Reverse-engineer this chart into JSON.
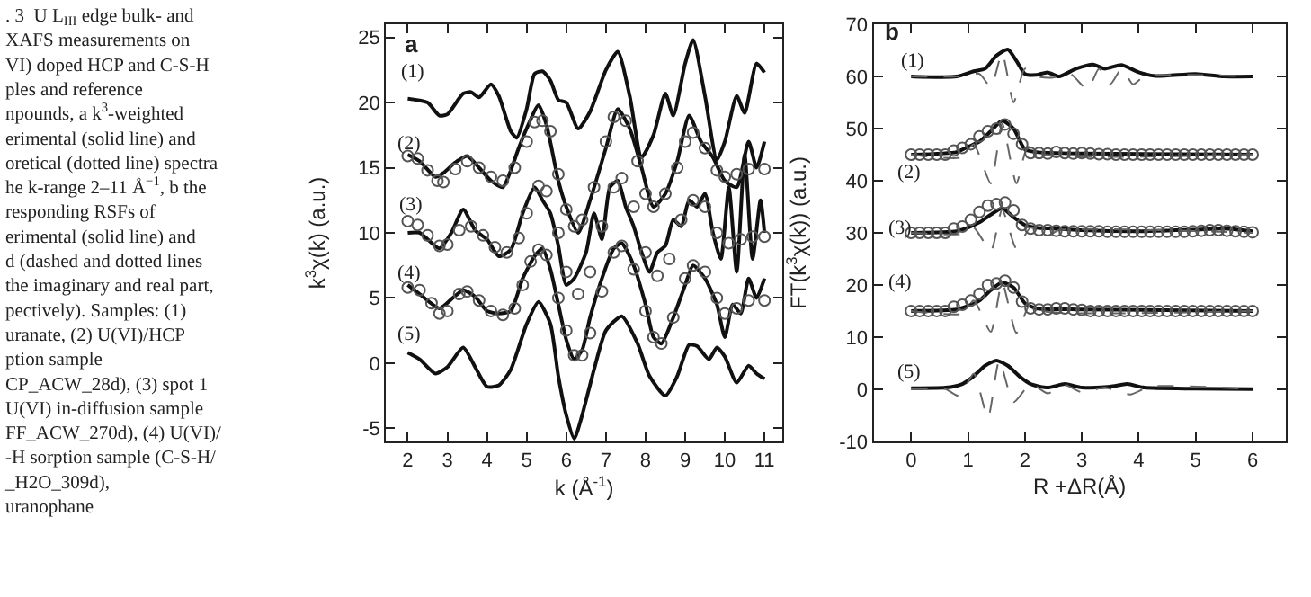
{
  "chart_data": [
    {
      "type": "line",
      "xlabel": "k (Å$^{-1}$)",
      "ylabel": "k$^{3}$χ(k) (a.u.)",
      "xlim": [
        1.45,
        11.45
      ],
      "ylim": [
        -6,
        26
      ],
      "xticks": [
        2,
        3,
        4,
        5,
        6,
        7,
        8,
        9,
        10,
        11
      ],
      "yticks": [
        -5,
        0,
        5,
        10,
        15,
        20,
        25
      ],
      "annotations": [
        ". 3  U L$_{III}$ edge bulk- and\nXAFS measurements on\nVI) doped HCP and C-S-H\nples and reference\nnpounds, a k$^{3}$-weighted\nerimental (solid line) and\noretical (dotted line) spectra\nhe k-range 2–11 Å$^{−1}$, b the\nresponding RSFs of\nerimental (solid line) and\nd (dashed and dotted lines\nthe imaginary and real part,\npectively). Samples: (1)\nuranate, (2) U(VI)/HCP\nption sample\nCP_ACW_28d), (3) spot 1\nU(VI) in-diffusion sample\nFF_ACW_270d), (4) U(VI)/\n-H sorption sample (C-S-H/\n_H2O_309d),\nuranophane",
        "a",
        "(1)",
        "(2)",
        "(3)",
        "(4)",
        "(5)"
      ],
      "series": [
        {
          "type": "line",
          "marker": "none",
          "line_style": "solid",
          "color": "#111111",
          "x": [
            2,
            2.5,
            2.8,
            3.0,
            3.4,
            3.6,
            3.8,
            4.1,
            4.3,
            4.6,
            4.75,
            5.0,
            5.2,
            5.4,
            5.6,
            5.8,
            6.0,
            6.3,
            6.6,
            7.0,
            7.3,
            7.6,
            7.9,
            8.2,
            8.5,
            8.7,
            9.0,
            9.2,
            9.5,
            9.8,
            10.0,
            10.3,
            10.5,
            10.8,
            11.0
          ],
          "values": [
            20.3,
            20.0,
            19.0,
            19.1,
            20.7,
            20.8,
            20.4,
            21.4,
            20.5,
            17.8,
            17.3,
            19.5,
            22.2,
            22.4,
            21.7,
            20.2,
            20.0,
            18.0,
            19.3,
            22.5,
            23.9,
            20.5,
            15.8,
            17.5,
            20.7,
            19.0,
            23.0,
            24.8,
            20.5,
            15.6,
            17.0,
            20.5,
            19.2,
            23.0,
            22.3
          ]
        },
        {
          "type": "line",
          "marker": "none",
          "line_style": "solid",
          "color": "#111111",
          "x": [
            2,
            2.3,
            2.7,
            2.9,
            3.2,
            3.5,
            3.8,
            4.1,
            4.4,
            4.6,
            4.8,
            5.0,
            5.3,
            5.5,
            5.8,
            6.0,
            6.3,
            6.6,
            7.0,
            7.3,
            7.6,
            7.9,
            8.2,
            8.5,
            8.8,
            9.1,
            9.4,
            9.7,
            10.0,
            10.3,
            10.6,
            10.8,
            11.0
          ],
          "values": [
            16.0,
            15.5,
            14.3,
            14.6,
            15.4,
            15.9,
            15.0,
            14.0,
            13.5,
            14.8,
            16.5,
            18.0,
            19.8,
            18.3,
            14.0,
            12.0,
            10.0,
            12.5,
            16.5,
            19.5,
            18.0,
            15.0,
            12.0,
            13.0,
            15.5,
            19.0,
            17.0,
            15.8,
            14.0,
            13.5,
            17.0,
            15.0,
            17.0
          ]
        },
        {
          "type": "scatter",
          "marker": "circle",
          "color": "#555555",
          "x": [
            2,
            2.25,
            2.5,
            2.75,
            2.9,
            3.2,
            3.5,
            3.8,
            4.1,
            4.4,
            4.7,
            5.0,
            5.2,
            5.4,
            5.6,
            5.8,
            6.0,
            6.2,
            6.4,
            6.7,
            7.0,
            7.2,
            7.5,
            7.8,
            8.0,
            8.2,
            8.5,
            8.8,
            9.0,
            9.2,
            9.5,
            9.8,
            10.0,
            10.3,
            10.6,
            11.0
          ],
          "values": [
            15.9,
            15.7,
            14.8,
            14.0,
            13.9,
            14.9,
            15.5,
            15.0,
            14.3,
            14.0,
            15.0,
            17.0,
            18.5,
            18.6,
            17.8,
            14.5,
            11.8,
            10.5,
            11.0,
            13.5,
            17.0,
            18.9,
            18.6,
            15.5,
            13.0,
            12.0,
            13.0,
            15.0,
            17.0,
            17.7,
            16.5,
            14.8,
            14.3,
            14.5,
            14.9,
            14.9
          ]
        },
        {
          "type": "line",
          "marker": "none",
          "line_style": "solid",
          "color": "#111111",
          "x": [
            2,
            2.3,
            2.8,
            3.1,
            3.4,
            3.7,
            4.0,
            4.3,
            4.6,
            4.9,
            5.2,
            5.4,
            5.6,
            5.8,
            6.0,
            6.2,
            6.5,
            6.7,
            6.9,
            7.1,
            7.3,
            7.5,
            7.7,
            7.9,
            8.1,
            8.3,
            8.5,
            8.7,
            8.9,
            9.1,
            9.3,
            9.5,
            9.7,
            9.9,
            10.1,
            10.3,
            10.5,
            10.7,
            10.9,
            11.0
          ],
          "values": [
            10.0,
            10.0,
            8.8,
            10.0,
            11.8,
            10.2,
            9.5,
            8.2,
            8.7,
            11.5,
            13.5,
            12.5,
            11.5,
            9.0,
            6.0,
            6.5,
            8.5,
            11.5,
            9.5,
            13.5,
            14.0,
            12.0,
            10.5,
            8.5,
            7.0,
            8.5,
            9.0,
            11.0,
            10.5,
            12.5,
            12.0,
            13.0,
            10.0,
            8.0,
            13.5,
            7.0,
            16.0,
            8.0,
            12.5,
            10.0
          ]
        },
        {
          "type": "scatter",
          "marker": "circle",
          "color": "#555555",
          "x": [
            2,
            2.25,
            2.5,
            2.8,
            3.0,
            3.3,
            3.6,
            3.9,
            4.2,
            4.5,
            4.8,
            5.0,
            5.3,
            5.5,
            5.8,
            6.0,
            6.3,
            6.6,
            6.9,
            7.2,
            7.4,
            7.7,
            8.0,
            8.3,
            8.6,
            8.9,
            9.2,
            9.5,
            9.8,
            10.1,
            10.4,
            10.7,
            11.0
          ],
          "values": [
            10.9,
            10.6,
            9.8,
            9.0,
            9.1,
            10.2,
            10.5,
            9.8,
            8.9,
            8.5,
            9.6,
            11.5,
            13.6,
            13.2,
            10.0,
            7.0,
            5.3,
            7.0,
            10.5,
            13.5,
            14.2,
            12.0,
            8.5,
            6.7,
            8.0,
            11.0,
            12.5,
            12.0,
            10.0,
            9.2,
            9.5,
            9.7,
            9.7
          ]
        },
        {
          "type": "line",
          "marker": "none",
          "line_style": "solid",
          "color": "#111111",
          "x": [
            2,
            2.3,
            2.8,
            3.1,
            3.4,
            3.7,
            4.0,
            4.3,
            4.6,
            4.9,
            5.2,
            5.4,
            5.6,
            5.8,
            6.0,
            6.2,
            6.4,
            6.6,
            6.9,
            7.2,
            7.4,
            7.7,
            8.0,
            8.2,
            8.4,
            8.7,
            9.0,
            9.2,
            9.5,
            9.8,
            10.0,
            10.2,
            10.4,
            10.6,
            10.8,
            11.0
          ],
          "values": [
            6.0,
            5.3,
            4.2,
            4.9,
            5.6,
            5.1,
            4.0,
            3.8,
            4.0,
            6.5,
            8.2,
            8.8,
            7.2,
            4.5,
            1.8,
            0.3,
            1.0,
            3.5,
            6.5,
            8.8,
            9.2,
            7.5,
            4.5,
            2.0,
            1.5,
            3.5,
            6.0,
            7.5,
            6.5,
            4.5,
            2.0,
            4.5,
            3.8,
            6.5,
            5.0,
            6.5
          ]
        },
        {
          "type": "scatter",
          "marker": "circle",
          "color": "#555555",
          "x": [
            2,
            2.3,
            2.6,
            2.8,
            3.0,
            3.3,
            3.5,
            3.8,
            4.1,
            4.4,
            4.7,
            4.9,
            5.1,
            5.3,
            5.5,
            5.8,
            6.0,
            6.2,
            6.4,
            6.6,
            6.9,
            7.2,
            7.4,
            7.7,
            8.0,
            8.2,
            8.4,
            8.7,
            9.0,
            9.2,
            9.5,
            9.8,
            10.0,
            10.3,
            10.6,
            11.0
          ],
          "values": [
            5.8,
            5.6,
            4.6,
            3.8,
            4.0,
            5.3,
            5.5,
            4.8,
            4.0,
            3.7,
            4.2,
            6.0,
            7.8,
            8.7,
            8.3,
            5.0,
            2.5,
            0.6,
            0.6,
            2.3,
            5.5,
            8.5,
            9.0,
            7.2,
            4.0,
            2.0,
            1.5,
            3.5,
            6.5,
            7.5,
            7.0,
            5.0,
            3.8,
            4.2,
            4.8,
            4.8
          ]
        },
        {
          "type": "line",
          "marker": "none",
          "line_style": "solid",
          "color": "#111111",
          "x": [
            2,
            2.3,
            2.7,
            3.0,
            3.4,
            3.7,
            4.0,
            4.3,
            4.6,
            5.0,
            5.3,
            5.6,
            5.8,
            6.0,
            6.2,
            6.4,
            6.7,
            7.0,
            7.4,
            7.8,
            8.1,
            8.5,
            8.8,
            9.1,
            9.3,
            9.6,
            9.8,
            10.0,
            10.3,
            10.6,
            10.8,
            11.0
          ],
          "values": [
            0.8,
            0.3,
            -0.8,
            -0.3,
            1.2,
            -0.3,
            -1.8,
            -1.7,
            -0.5,
            3.0,
            4.7,
            3.0,
            -1.0,
            -4.0,
            -5.8,
            -4.0,
            -0.5,
            2.5,
            3.6,
            1.5,
            -1.0,
            -2.5,
            -1.0,
            1.4,
            1.3,
            0.3,
            1.2,
            0.5,
            -1.5,
            -0.2,
            -0.8,
            -1.2
          ]
        }
      ]
    },
    {
      "type": "line",
      "xlabel": "R +ΔR(Å)",
      "ylabel": "FT(k$^{3}$χ(k)) (a.u.)",
      "xlim": [
        -0.66,
        6.58
      ],
      "ylim": [
        -10,
        70
      ],
      "xticks": [
        0,
        1,
        2,
        3,
        4,
        5,
        6
      ],
      "yticks": [
        -10,
        0,
        10,
        20,
        30,
        40,
        50,
        60,
        70
      ],
      "annotations": [
        "b",
        "(1)",
        "(2)",
        "(3)",
        "(4)",
        "(5)"
      ],
      "series": [
        {
          "type": "line",
          "marker": "none",
          "line_style": "solid",
          "color": "#111111",
          "x": [
            0,
            0.8,
            1.1,
            1.3,
            1.5,
            1.7,
            1.85,
            2.0,
            2.2,
            2.4,
            2.6,
            2.9,
            3.2,
            3.4,
            3.7,
            4.0,
            4.3,
            5.0,
            5.5,
            6.0
          ],
          "values": [
            60,
            60,
            61,
            61.5,
            64,
            65.2,
            63,
            60.5,
            60.3,
            60.8,
            60,
            61.5,
            62.3,
            61.5,
            62.2,
            60.8,
            60.1,
            60.5,
            60,
            60
          ]
        },
        {
          "type": "line",
          "marker": "none",
          "line_style": "dashed",
          "color": "#666666",
          "x": [
            0,
            0.8,
            1.2,
            1.4,
            1.6,
            1.8,
            2.0,
            2.2,
            2.5,
            2.8,
            3.1,
            3.3,
            3.5,
            3.7,
            3.9,
            4.1,
            6.0
          ],
          "values": [
            60,
            60,
            60.5,
            58,
            64.5,
            55,
            61.5,
            60,
            59.8,
            60.5,
            57.5,
            61.5,
            58.5,
            61.5,
            58.5,
            60,
            60
          ]
        },
        {
          "type": "line",
          "marker": "none",
          "line_style": "solid",
          "color": "#111111",
          "x": [
            0,
            0.8,
            1.0,
            1.2,
            1.4,
            1.6,
            1.8,
            2.0,
            2.2,
            3.0,
            6.0
          ],
          "values": [
            45,
            45.5,
            46.5,
            47.5,
            49.5,
            51.5,
            50,
            46,
            45.5,
            45.2,
            45
          ]
        },
        {
          "type": "line",
          "marker": "none",
          "line_style": "dashed",
          "color": "#666666",
          "x": [
            0,
            0.9,
            1.1,
            1.4,
            1.6,
            1.85,
            2.05,
            2.3,
            6.0
          ],
          "values": [
            45,
            44.5,
            47,
            39.5,
            51,
            39.5,
            46.5,
            45,
            45
          ]
        },
        {
          "type": "scatter",
          "marker": "circle",
          "color": "#555555",
          "x": [
            0,
            0.15,
            0.3,
            0.45,
            0.6,
            0.75,
            0.9,
            1.05,
            1.2,
            1.35,
            1.5,
            1.65,
            1.8,
            1.95,
            2.1,
            2.25,
            2.4,
            2.55,
            2.7,
            2.85,
            3.0,
            3.15,
            3.3,
            3.45,
            3.6,
            3.75,
            3.9,
            4.05,
            4.2,
            4.35,
            4.5,
            4.65,
            4.8,
            4.95,
            5.1,
            5.25,
            5.4,
            5.55,
            5.7,
            5.85,
            6.0
          ],
          "values": [
            45,
            45,
            45,
            45,
            45,
            45.8,
            46.3,
            47.0,
            48.5,
            49.5,
            50.0,
            50.8,
            49.0,
            47.0,
            45.3,
            45.3,
            45.2,
            45.5,
            45.3,
            45.2,
            45.3,
            45.2,
            45.1,
            45.1,
            45.0,
            45.0,
            45.0,
            45.0,
            45.0,
            45.0,
            45.0,
            45.0,
            45.0,
            45.0,
            45.0,
            45.0,
            45.0,
            45.0,
            45.0,
            45.0,
            45.0
          ]
        },
        {
          "type": "line",
          "marker": "none",
          "line_style": "solid",
          "color": "#111111",
          "x": [
            0,
            0.8,
            1.0,
            1.2,
            1.4,
            1.6,
            1.8,
            2.0,
            2.2,
            2.5,
            3.0,
            4.0,
            5.0,
            5.5,
            6.0
          ],
          "values": [
            30,
            30.3,
            31,
            32,
            33.5,
            34.7,
            33,
            31.5,
            31,
            30.8,
            30.5,
            30.3,
            30.6,
            30.8,
            30.3
          ]
        },
        {
          "type": "line",
          "marker": "none",
          "line_style": "dashed",
          "color": "#666666",
          "x": [
            0,
            0.9,
            1.1,
            1.4,
            1.6,
            1.85,
            2.1,
            2.4,
            2.6,
            6.0
          ],
          "values": [
            30,
            29.8,
            31,
            26.5,
            34.5,
            27,
            31,
            29.5,
            30.5,
            30
          ]
        },
        {
          "type": "scatter",
          "marker": "circle",
          "color": "#555555",
          "x": [
            0,
            0.15,
            0.3,
            0.45,
            0.6,
            0.75,
            0.9,
            1.05,
            1.2,
            1.35,
            1.5,
            1.65,
            1.8,
            1.95,
            2.1,
            2.25,
            2.4,
            2.55,
            2.7,
            2.85,
            3.0,
            3.15,
            3.3,
            3.45,
            3.6,
            3.75,
            3.9,
            4.05,
            4.2,
            4.35,
            4.5,
            4.65,
            4.8,
            4.95,
            5.1,
            5.25,
            5.4,
            5.55,
            5.7,
            5.85,
            6.0
          ],
          "values": [
            30,
            30,
            30,
            30,
            30,
            30.8,
            31.2,
            32.5,
            34.0,
            35.2,
            35.5,
            35.8,
            34.3,
            31.5,
            30.8,
            30.5,
            30.5,
            30.4,
            30.3,
            30.3,
            30.3,
            30.3,
            30.3,
            30.2,
            30.2,
            30.2,
            30.2,
            30.2,
            30.2,
            30.2,
            30.2,
            30.2,
            30.2,
            30.3,
            30.4,
            30.5,
            30.5,
            30.4,
            30.3,
            30.2,
            30.1
          ]
        },
        {
          "type": "line",
          "marker": "none",
          "line_style": "solid",
          "color": "#111111",
          "x": [
            0,
            0.8,
            1.0,
            1.2,
            1.4,
            1.6,
            1.8,
            2.0,
            2.2,
            3.0,
            6.0
          ],
          "values": [
            15,
            15.3,
            16,
            17,
            19,
            20.5,
            19.5,
            16.5,
            15.5,
            15.3,
            15
          ]
        },
        {
          "type": "line",
          "marker": "none",
          "line_style": "dashed",
          "color": "#666666",
          "x": [
            0,
            0.9,
            1.1,
            1.4,
            1.6,
            1.85,
            2.1,
            2.3,
            6.0
          ],
          "values": [
            15,
            14.5,
            17,
            11,
            20.5,
            10.8,
            16.5,
            15,
            15
          ]
        },
        {
          "type": "scatter",
          "marker": "circle",
          "color": "#555555",
          "x": [
            0,
            0.15,
            0.3,
            0.45,
            0.6,
            0.75,
            0.9,
            1.05,
            1.2,
            1.35,
            1.5,
            1.65,
            1.8,
            1.95,
            2.1,
            2.25,
            2.4,
            2.55,
            2.7,
            2.85,
            3.0,
            3.15,
            3.3,
            3.45,
            3.6,
            3.75,
            3.9,
            4.05,
            4.2,
            4.35,
            4.5,
            4.65,
            4.8,
            4.95,
            5.1,
            5.25,
            5.4,
            5.55,
            5.7,
            5.85,
            6.0
          ],
          "values": [
            15,
            15,
            15,
            15,
            15,
            15.8,
            16.2,
            17.0,
            18.3,
            20.0,
            20.3,
            20.8,
            19.5,
            16.8,
            15.5,
            15.3,
            15.3,
            15.5,
            15.5,
            15.3,
            15.2,
            15.0,
            15.0,
            15.0,
            15.0,
            15.0,
            15.0,
            15.0,
            15.0,
            15.0,
            15.0,
            15.0,
            15.0,
            15.0,
            15.0,
            15.0,
            15.0,
            15.0,
            15.0,
            15.0,
            15.0
          ]
        },
        {
          "type": "line",
          "marker": "none",
          "line_style": "solid",
          "color": "#111111",
          "x": [
            0,
            0.6,
            0.9,
            1.1,
            1.3,
            1.5,
            1.7,
            1.9,
            2.1,
            2.4,
            2.7,
            3.0,
            3.5,
            3.8,
            4.1,
            5.0,
            6.0
          ],
          "values": [
            0.2,
            0.3,
            1.0,
            2.5,
            4.5,
            5.5,
            4.5,
            2.5,
            1.0,
            0.3,
            1.0,
            0.3,
            0.5,
            1.0,
            0.3,
            0.1,
            0
          ]
        },
        {
          "type": "line",
          "marker": "none",
          "line_style": "dashed",
          "color": "#666666",
          "x": [
            0,
            0.6,
            0.85,
            1.1,
            1.35,
            1.55,
            1.8,
            2.1,
            2.4,
            2.7,
            3.0,
            3.4,
            3.85,
            4.2,
            6.0
          ],
          "values": [
            0,
            0,
            -1.3,
            3,
            -5.5,
            5.5,
            -2.5,
            1,
            -0.8,
            0.8,
            -0.6,
            0.3,
            -1,
            0.5,
            0
          ]
        }
      ]
    }
  ]
}
